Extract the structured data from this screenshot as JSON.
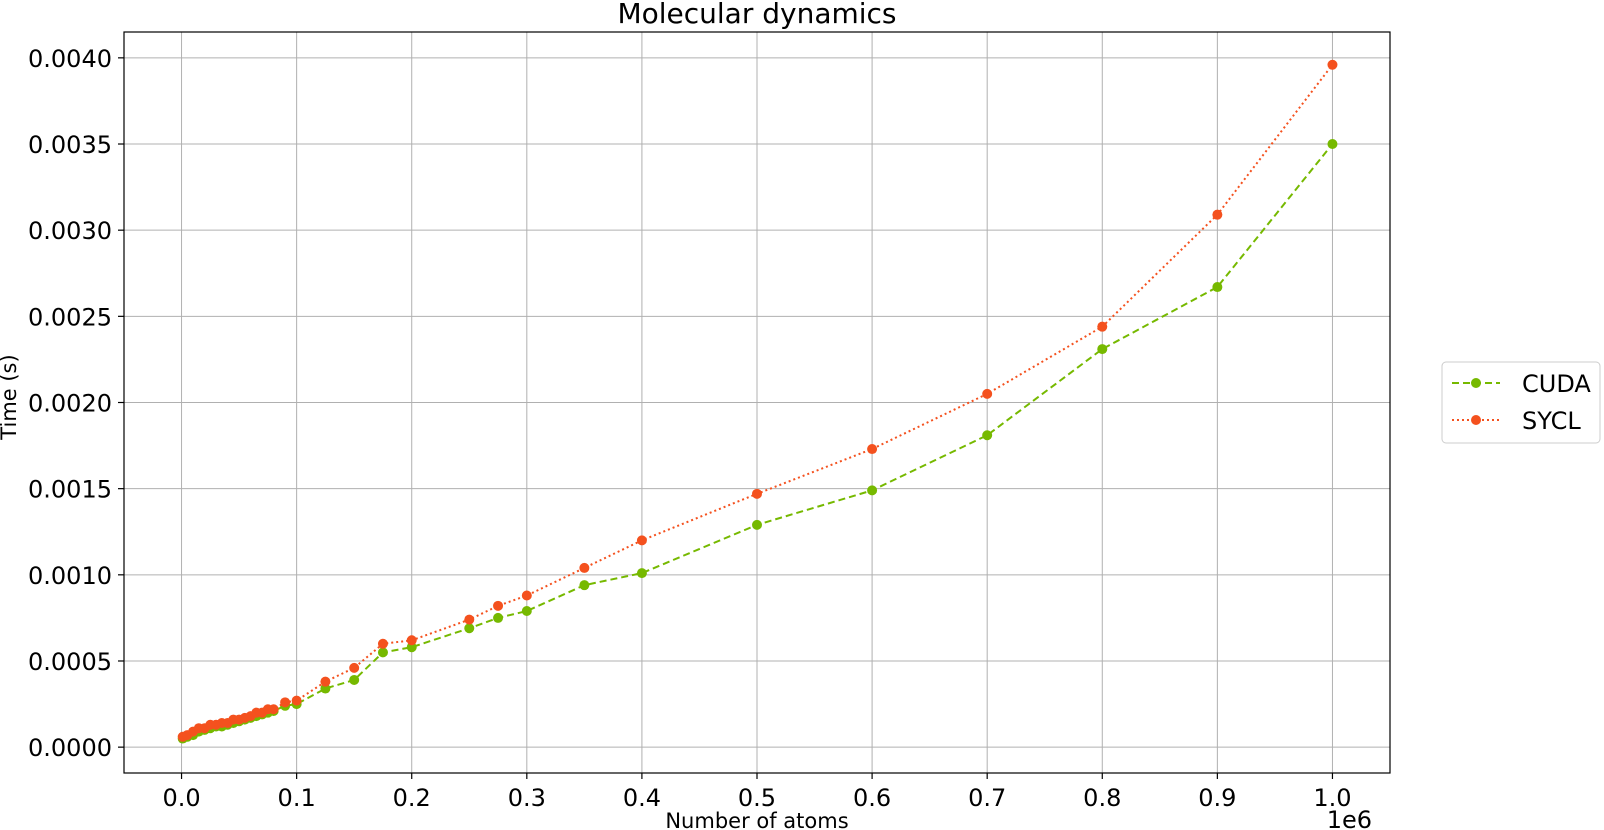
{
  "chart_data": {
    "type": "line",
    "title": "Molecular dynamics",
    "xlabel": "Number of atoms",
    "ylabel": "Time (s)",
    "x_offset_label": "1e6",
    "xlim": [
      -0.05,
      1.05
    ],
    "ylim": [
      -0.00015,
      0.00415
    ],
    "grid": true,
    "legend_position": "outside-right",
    "x_ticks": [
      0.0,
      0.1,
      0.2,
      0.3,
      0.4,
      0.5,
      0.6,
      0.7,
      0.8,
      0.9,
      1.0
    ],
    "x_tick_labels": [
      "0.0",
      "0.1",
      "0.2",
      "0.3",
      "0.4",
      "0.5",
      "0.6",
      "0.7",
      "0.8",
      "0.9",
      "1.0"
    ],
    "y_ticks": [
      0.0,
      0.0005,
      0.001,
      0.0015,
      0.002,
      0.0025,
      0.003,
      0.0035,
      0.004
    ],
    "y_tick_labels": [
      "0.0000",
      "0.0005",
      "0.0010",
      "0.0015",
      "0.0020",
      "0.0025",
      "0.0030",
      "0.0035",
      "0.0040"
    ],
    "series": [
      {
        "name": "CUDA",
        "color": "#76b900",
        "line_style": "dashed",
        "x": [
          0.001,
          0.005,
          0.01,
          0.015,
          0.02,
          0.025,
          0.03,
          0.035,
          0.04,
          0.045,
          0.05,
          0.055,
          0.06,
          0.065,
          0.07,
          0.075,
          0.08,
          0.09,
          0.1,
          0.125,
          0.15,
          0.175,
          0.2,
          0.25,
          0.275,
          0.3,
          0.35,
          0.4,
          0.5,
          0.6,
          0.7,
          0.8,
          0.9,
          1.0
        ],
        "y": [
          5e-05,
          6e-05,
          7e-05,
          9e-05,
          0.0001,
          0.00011,
          0.00012,
          0.00012,
          0.00013,
          0.00014,
          0.00015,
          0.00016,
          0.00017,
          0.00018,
          0.00019,
          0.0002,
          0.00021,
          0.00024,
          0.00025,
          0.00034,
          0.00039,
          0.00055,
          0.00058,
          0.00069,
          0.00075,
          0.00079,
          0.00094,
          0.00101,
          0.00129,
          0.00149,
          0.00181,
          0.00231,
          0.00267,
          0.0035
        ]
      },
      {
        "name": "SYCL",
        "color": "#f4511e",
        "line_style": "dotted",
        "x": [
          0.001,
          0.005,
          0.01,
          0.015,
          0.02,
          0.025,
          0.03,
          0.035,
          0.04,
          0.045,
          0.05,
          0.055,
          0.06,
          0.065,
          0.07,
          0.075,
          0.08,
          0.09,
          0.1,
          0.125,
          0.15,
          0.175,
          0.2,
          0.25,
          0.275,
          0.3,
          0.35,
          0.4,
          0.5,
          0.6,
          0.7,
          0.8,
          0.9,
          1.0
        ],
        "y": [
          6e-05,
          7e-05,
          9e-05,
          0.00011,
          0.00011,
          0.00013,
          0.00013,
          0.00014,
          0.00014,
          0.00016,
          0.00016,
          0.00017,
          0.00018,
          0.0002,
          0.0002,
          0.00022,
          0.00022,
          0.00026,
          0.00027,
          0.00038,
          0.00046,
          0.0006,
          0.00062,
          0.00074,
          0.00082,
          0.00088,
          0.00104,
          0.0012,
          0.00147,
          0.00173,
          0.00205,
          0.00244,
          0.00309,
          0.00396
        ]
      }
    ]
  }
}
